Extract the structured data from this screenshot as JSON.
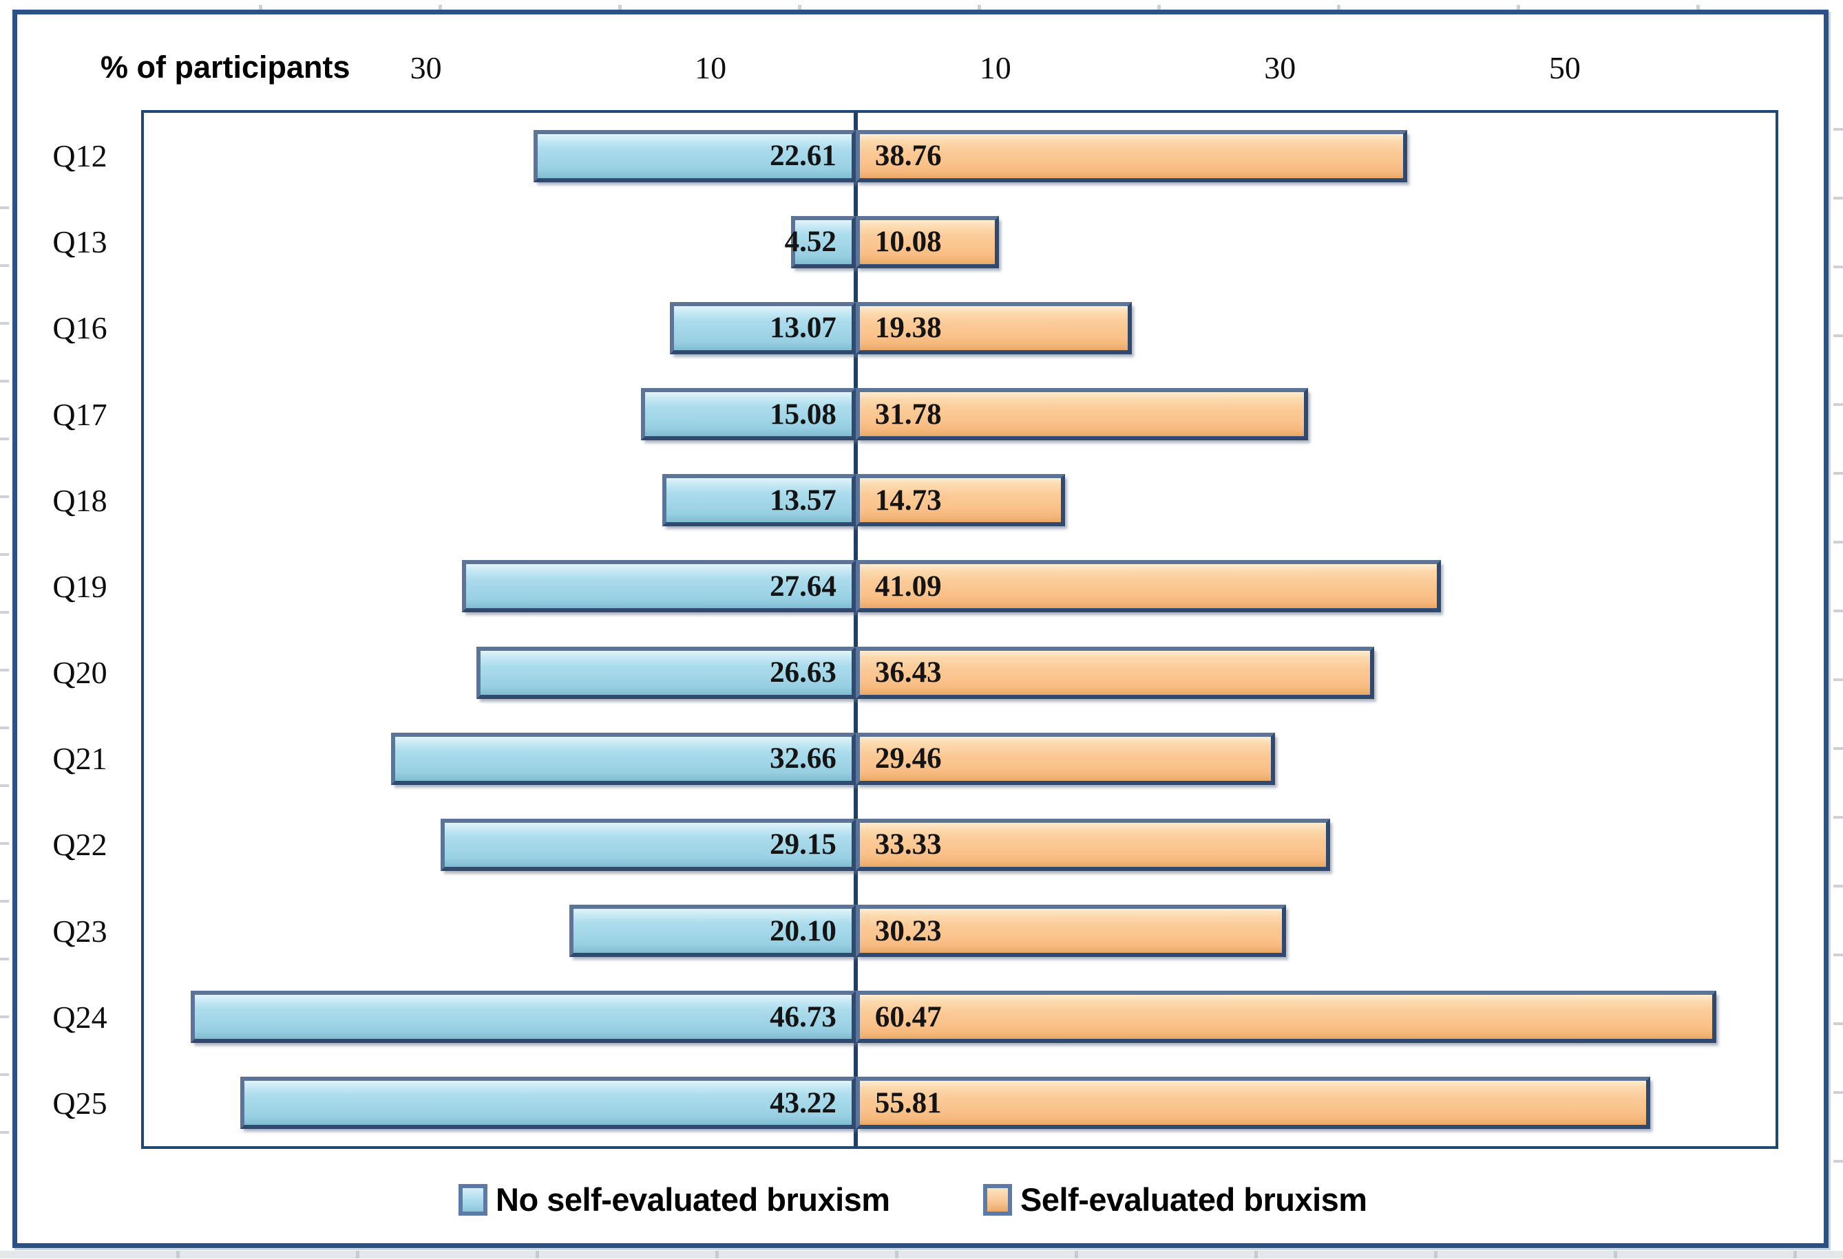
{
  "chart_data": {
    "type": "bar",
    "variant": "diverging-horizontal-tornado",
    "title": "",
    "axis_title": "% of participants",
    "categories": [
      "Q12",
      "Q13",
      "Q16",
      "Q17",
      "Q18",
      "Q19",
      "Q20",
      "Q21",
      "Q22",
      "Q23",
      "Q24",
      "Q25"
    ],
    "series": [
      {
        "name": "No self-evaluated bruxism",
        "side": "left",
        "color": "#A5D8EA",
        "values": [
          22.61,
          4.52,
          13.07,
          15.08,
          13.57,
          27.64,
          26.63,
          32.66,
          29.15,
          20.1,
          46.73,
          43.22
        ],
        "value_labels": [
          "22.61",
          "4.52",
          "13.07",
          "15.08",
          "13.57",
          "27.64",
          "26.63",
          "32.66",
          "29.15",
          "20.10",
          "46.73",
          "43.22"
        ]
      },
      {
        "name": "Self-evaluated bruxism",
        "side": "right",
        "color": "#FBC998",
        "values": [
          38.76,
          10.08,
          19.38,
          31.78,
          14.73,
          41.09,
          36.43,
          29.46,
          33.33,
          30.23,
          60.47,
          55.81
        ],
        "value_labels": [
          "38.76",
          "10.08",
          "19.38",
          "31.78",
          "14.73",
          "41.09",
          "36.43",
          "29.46",
          "33.33",
          "30.23",
          "60.47",
          "55.81"
        ]
      }
    ],
    "axis": {
      "ticks": [
        -30,
        -10,
        10,
        30,
        50
      ],
      "tick_labels": [
        "30",
        "10",
        "10",
        "30",
        "50"
      ],
      "xlim": [
        -50,
        65
      ],
      "gridlines": false,
      "center_value": 0
    },
    "legend_position": "bottom"
  },
  "legend": {
    "items": [
      {
        "label": "No self-evaluated bruxism",
        "swatch_color": "#A5D8EA"
      },
      {
        "label": "Self-evaluated bruxism",
        "swatch_color": "#FBC998"
      }
    ]
  },
  "colors": {
    "blue_bar_fill": "#A5D8EA",
    "blue_bar_highlight": "#C7E9F4",
    "orange_bar_fill": "#FBC998",
    "orange_bar_highlight": "#FDE7C5",
    "bar_border": "#2F4A6E",
    "plot_border": "#1F4876",
    "center_axis_line": "#1E3F66",
    "outer_frame": "#2B5186",
    "label_text": "#141414",
    "gridline_stub": "#CDD2D8",
    "background": "#FFFFFF"
  }
}
